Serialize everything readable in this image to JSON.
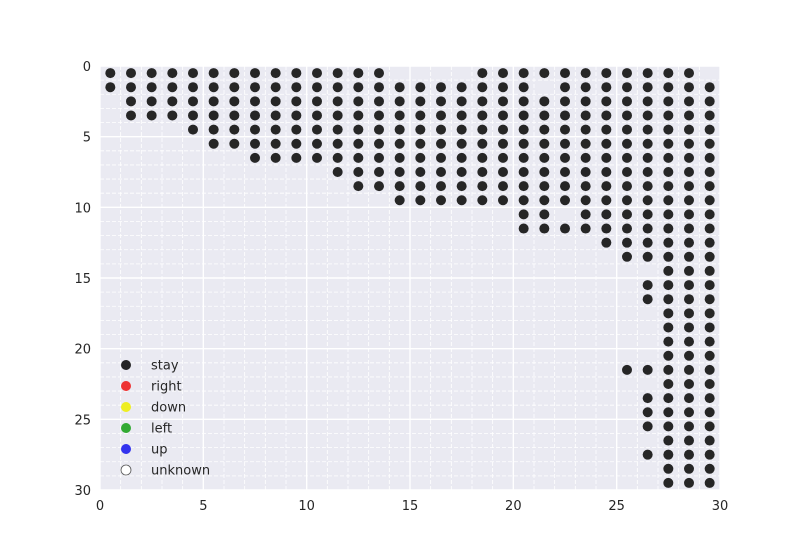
{
  "chart_data": {
    "type": "scatter",
    "title": "",
    "xlabel": "",
    "ylabel": "",
    "xlim": [
      0,
      30
    ],
    "ylim": [
      30,
      0
    ],
    "y_inverted": true,
    "grid": true,
    "minor_grid": true,
    "legend_position": "lower-left",
    "x_ticks": [
      0,
      5,
      10,
      15,
      20,
      25,
      30
    ],
    "y_ticks": [
      0,
      5,
      10,
      15,
      20,
      25,
      30
    ],
    "legend": [
      {
        "label": "stay",
        "color": "#262626"
      },
      {
        "label": "right",
        "color": "#ee3333"
      },
      {
        "label": "down",
        "color": "#eeee22"
      },
      {
        "label": "left",
        "color": "#33aa33"
      },
      {
        "label": "up",
        "color": "#3333ee"
      },
      {
        "label": "unknown",
        "color": "#ffffff"
      }
    ],
    "series": [
      {
        "name": "stay",
        "color": "#262626",
        "rows": [
          {
            "y": 0.5,
            "x": [
              0.5,
              1.5,
              2.5,
              3.5,
              4.5,
              5.5,
              6.5,
              7.5,
              8.5,
              9.5,
              10.5,
              11.5,
              12.5,
              13.5,
              18.5,
              19.5,
              20.5,
              21.5,
              22.5,
              23.5,
              24.5,
              25.5,
              26.5,
              27.5,
              28.5
            ]
          },
          {
            "y": 1.5,
            "x": [
              0.5,
              1.5,
              2.5,
              3.5,
              4.5,
              5.5,
              6.5,
              7.5,
              8.5,
              9.5,
              10.5,
              11.5,
              12.5,
              13.5,
              14.5,
              15.5,
              16.5,
              17.5,
              18.5,
              19.5,
              20.5,
              22.5,
              23.5,
              24.5,
              25.5,
              26.5,
              27.5,
              28.5,
              29.5
            ]
          },
          {
            "y": 2.5,
            "x": [
              1.5,
              2.5,
              3.5,
              4.5,
              5.5,
              6.5,
              7.5,
              8.5,
              9.5,
              10.5,
              11.5,
              12.5,
              13.5,
              14.5,
              15.5,
              16.5,
              17.5,
              18.5,
              19.5,
              20.5,
              21.5,
              22.5,
              23.5,
              24.5,
              25.5,
              26.5,
              27.5,
              28.5,
              29.5
            ]
          },
          {
            "y": 3.5,
            "x": [
              1.5,
              2.5,
              3.5,
              4.5,
              5.5,
              6.5,
              7.5,
              8.5,
              9.5,
              10.5,
              11.5,
              12.5,
              13.5,
              14.5,
              15.5,
              16.5,
              17.5,
              18.5,
              19.5,
              20.5,
              21.5,
              22.5,
              23.5,
              24.5,
              25.5,
              26.5,
              27.5,
              28.5,
              29.5
            ]
          },
          {
            "y": 4.5,
            "x": [
              4.5,
              5.5,
              6.5,
              7.5,
              8.5,
              9.5,
              10.5,
              11.5,
              12.5,
              13.5,
              14.5,
              15.5,
              16.5,
              17.5,
              18.5,
              19.5,
              20.5,
              21.5,
              22.5,
              23.5,
              24.5,
              25.5,
              26.5,
              27.5,
              28.5,
              29.5
            ]
          },
          {
            "y": 5.5,
            "x": [
              5.5,
              6.5,
              7.5,
              8.5,
              9.5,
              10.5,
              11.5,
              12.5,
              13.5,
              14.5,
              15.5,
              16.5,
              17.5,
              18.5,
              19.5,
              20.5,
              21.5,
              22.5,
              23.5,
              24.5,
              25.5,
              26.5,
              27.5,
              28.5,
              29.5
            ]
          },
          {
            "y": 6.5,
            "x": [
              7.5,
              8.5,
              9.5,
              10.5,
              11.5,
              12.5,
              13.5,
              14.5,
              15.5,
              16.5,
              17.5,
              18.5,
              19.5,
              20.5,
              21.5,
              22.5,
              23.5,
              24.5,
              25.5,
              26.5,
              27.5,
              28.5,
              29.5
            ]
          },
          {
            "y": 7.5,
            "x": [
              11.5,
              12.5,
              13.5,
              14.5,
              15.5,
              16.5,
              17.5,
              18.5,
              19.5,
              20.5,
              21.5,
              22.5,
              23.5,
              24.5,
              25.5,
              26.5,
              27.5,
              28.5,
              29.5
            ]
          },
          {
            "y": 8.5,
            "x": [
              12.5,
              13.5,
              14.5,
              15.5,
              16.5,
              17.5,
              18.5,
              19.5,
              20.5,
              21.5,
              22.5,
              23.5,
              24.5,
              25.5,
              26.5,
              27.5,
              28.5,
              29.5
            ]
          },
          {
            "y": 9.5,
            "x": [
              14.5,
              15.5,
              16.5,
              17.5,
              18.5,
              19.5,
              20.5,
              21.5,
              22.5,
              23.5,
              24.5,
              25.5,
              26.5,
              27.5,
              28.5,
              29.5
            ]
          },
          {
            "y": 10.5,
            "x": [
              20.5,
              21.5,
              23.5,
              24.5,
              25.5,
              26.5,
              27.5,
              28.5,
              29.5
            ]
          },
          {
            "y": 11.5,
            "x": [
              20.5,
              21.5,
              22.5,
              23.5,
              24.5,
              25.5,
              26.5,
              27.5,
              28.5,
              29.5
            ]
          },
          {
            "y": 12.5,
            "x": [
              24.5,
              25.5,
              26.5,
              27.5,
              28.5,
              29.5
            ]
          },
          {
            "y": 13.5,
            "x": [
              25.5,
              26.5,
              27.5,
              28.5,
              29.5
            ]
          },
          {
            "y": 14.5,
            "x": [
              27.5,
              28.5,
              29.5
            ]
          },
          {
            "y": 15.5,
            "x": [
              26.5,
              27.5,
              28.5,
              29.5
            ]
          },
          {
            "y": 16.5,
            "x": [
              26.5,
              27.5,
              28.5,
              29.5
            ]
          },
          {
            "y": 17.5,
            "x": [
              27.5,
              28.5,
              29.5
            ]
          },
          {
            "y": 18.5,
            "x": [
              27.5,
              28.5,
              29.5
            ]
          },
          {
            "y": 19.5,
            "x": [
              27.5,
              28.5,
              29.5
            ]
          },
          {
            "y": 20.5,
            "x": [
              27.5,
              28.5,
              29.5
            ]
          },
          {
            "y": 21.5,
            "x": [
              25.5,
              26.5,
              27.5,
              28.5,
              29.5
            ]
          },
          {
            "y": 22.5,
            "x": [
              27.5,
              28.5,
              29.5
            ]
          },
          {
            "y": 23.5,
            "x": [
              26.5,
              27.5,
              28.5,
              29.5
            ]
          },
          {
            "y": 24.5,
            "x": [
              26.5,
              27.5,
              28.5,
              29.5
            ]
          },
          {
            "y": 25.5,
            "x": [
              26.5,
              27.5,
              28.5,
              29.5
            ]
          },
          {
            "y": 26.5,
            "x": [
              27.5,
              28.5,
              29.5
            ]
          },
          {
            "y": 27.5,
            "x": [
              26.5,
              27.5,
              28.5,
              29.5
            ]
          },
          {
            "y": 28.5,
            "x": [
              27.5,
              28.5,
              29.5
            ]
          },
          {
            "y": 29.5,
            "x": [
              27.5,
              28.5,
              29.5
            ]
          }
        ]
      }
    ]
  }
}
